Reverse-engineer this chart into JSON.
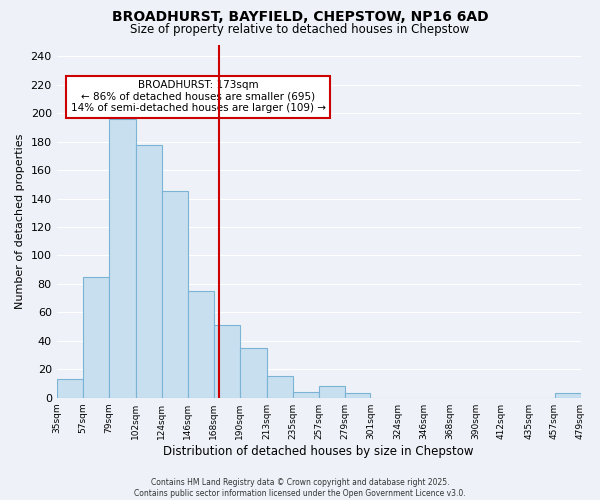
{
  "title": "BROADHURST, BAYFIELD, CHEPSTOW, NP16 6AD",
  "subtitle": "Size of property relative to detached houses in Chepstow",
  "xlabel": "Distribution of detached houses by size in Chepstow",
  "ylabel": "Number of detached properties",
  "bar_edges": [
    35,
    57,
    79,
    102,
    124,
    146,
    168,
    190,
    213,
    235,
    257,
    279,
    301,
    324,
    346,
    368,
    390,
    412,
    435,
    457,
    479
  ],
  "bar_heights": [
    13,
    85,
    196,
    178,
    145,
    75,
    51,
    35,
    15,
    4,
    8,
    3,
    0,
    0,
    0,
    0,
    0,
    0,
    0,
    3
  ],
  "bar_color": "#c8dff0",
  "bar_edge_color": "#7ab3d4",
  "vline_x": 173,
  "vline_color": "#cc0000",
  "annotation_title": "BROADHURST: 173sqm",
  "annotation_line1": "← 86% of detached houses are smaller (695)",
  "annotation_line2": "14% of semi-detached houses are larger (109) →",
  "annotation_box_facecolor": "#ffffff",
  "annotation_box_edgecolor": "#cc0000",
  "ylim": [
    0,
    248
  ],
  "yticks": [
    0,
    20,
    40,
    60,
    80,
    100,
    120,
    140,
    160,
    180,
    200,
    220,
    240
  ],
  "tick_labels": [
    "35sqm",
    "57sqm",
    "79sqm",
    "102sqm",
    "124sqm",
    "146sqm",
    "168sqm",
    "190sqm",
    "213sqm",
    "235sqm",
    "257sqm",
    "279sqm",
    "301sqm",
    "324sqm",
    "346sqm",
    "368sqm",
    "390sqm",
    "412sqm",
    "435sqm",
    "457sqm",
    "479sqm"
  ],
  "footer_line1": "Contains HM Land Registry data © Crown copyright and database right 2025.",
  "footer_line2": "Contains public sector information licensed under the Open Government Licence v3.0.",
  "bg_color": "#eef2f8",
  "grid_color": "#ffffff",
  "title_fontsize": 10,
  "subtitle_fontsize": 8.5,
  "ylabel_fontsize": 8,
  "xlabel_fontsize": 8.5,
  "ytick_fontsize": 8,
  "xtick_fontsize": 6.5,
  "footer_fontsize": 5.5,
  "ann_fontsize": 7.5
}
